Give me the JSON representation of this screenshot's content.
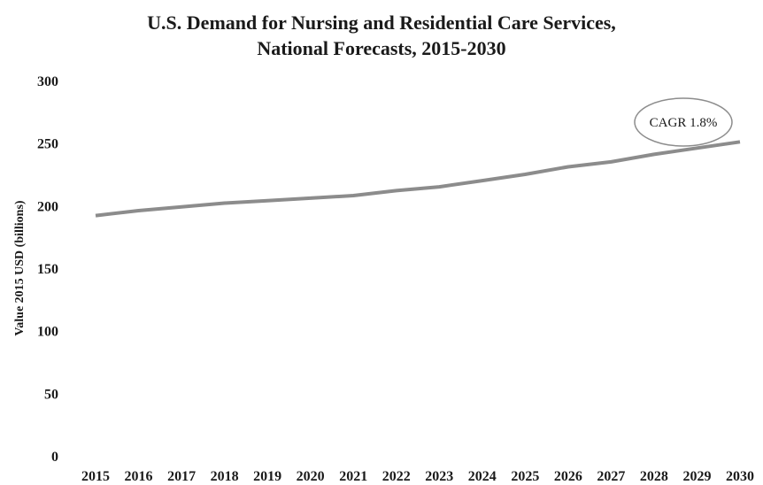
{
  "chart_data": {
    "type": "line",
    "title": "U.S. Demand for Nursing and Residential Care Services,",
    "subtitle": "National Forecasts, 2015-2030",
    "xlabel": "",
    "ylabel": "Value 2015 USD (billions)",
    "x": [
      2015,
      2016,
      2017,
      2018,
      2019,
      2020,
      2021,
      2022,
      2023,
      2024,
      2025,
      2026,
      2027,
      2028,
      2029,
      2030
    ],
    "ylim": [
      0,
      300
    ],
    "yticks": [
      0,
      50,
      100,
      150,
      200,
      250,
      300
    ],
    "grid": false,
    "series": [
      {
        "values": [
          192,
          196,
          199,
          202,
          204,
          206,
          208,
          212,
          215,
          220,
          225,
          231,
          235,
          241,
          246,
          251
        ]
      }
    ],
    "annotations": [
      {
        "text": "CAGR 1.8%"
      }
    ],
    "colors": {
      "line": "#8c8c8c",
      "annotation_border": "#8c8c8c",
      "text": "#1a1a1a"
    }
  }
}
